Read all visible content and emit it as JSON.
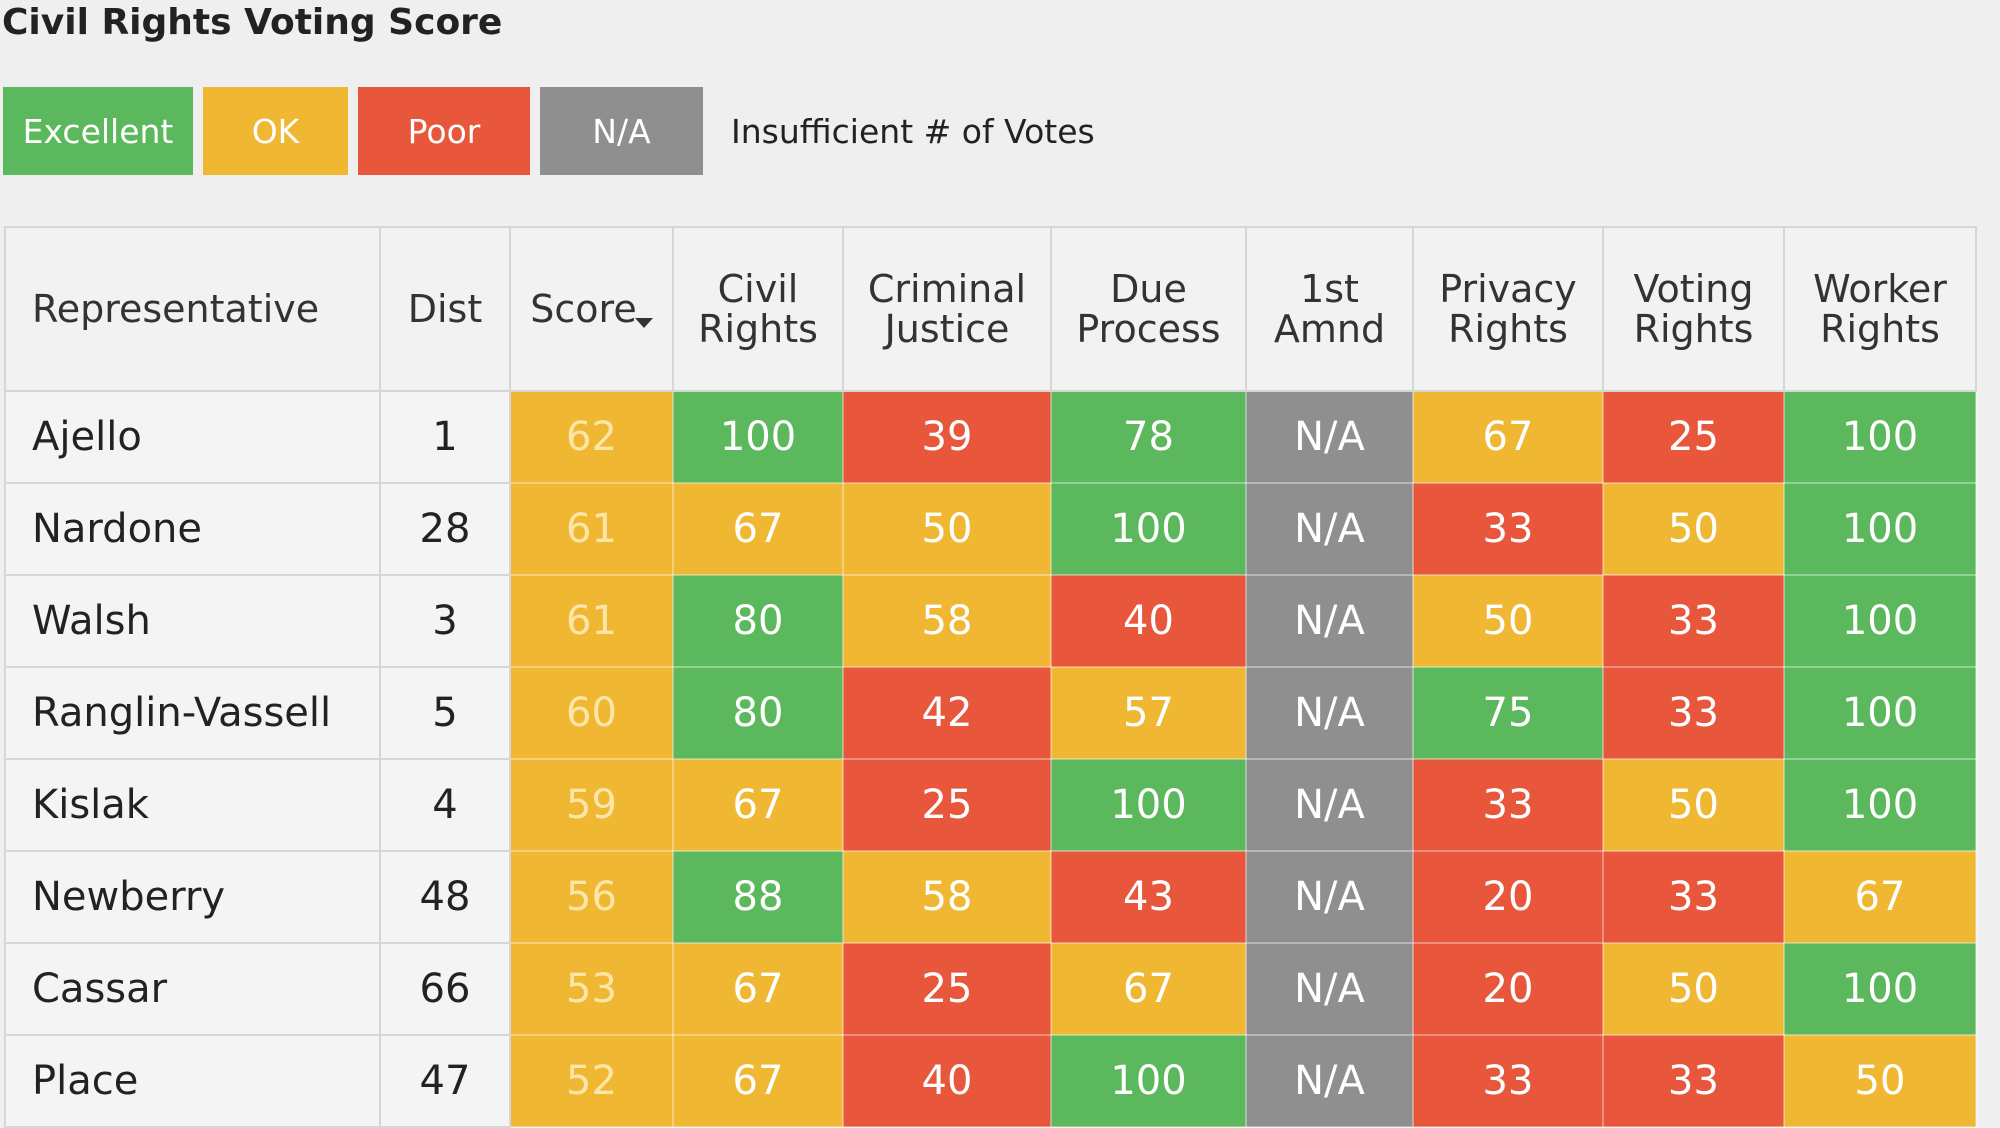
{
  "title": "Civil Rights Voting Score",
  "legend": [
    {
      "label": "Excellent",
      "color": "#5cb85c"
    },
    {
      "label": "OK",
      "color": "#f0b733"
    },
    {
      "label": "Poor",
      "color": "#e8573b"
    },
    {
      "label": "N/A",
      "color": "#8f8f8f"
    }
  ],
  "legend_note": "Insufficient # of Votes",
  "table": {
    "columns": [
      "Representative",
      "Dist",
      "Score",
      "Civil Rights",
      "Criminal Justice",
      "Due Process",
      "1st Amnd",
      "Privacy Rights",
      "Voting Rights",
      "Worker Rights"
    ],
    "rows": [
      [
        "Ajello",
        1,
        62,
        100,
        39,
        78,
        "N/A",
        67,
        25,
        100
      ],
      [
        "Nardone",
        28,
        61,
        67,
        50,
        100,
        "N/A",
        33,
        50,
        100
      ],
      [
        "Walsh",
        3,
        61,
        80,
        58,
        40,
        "N/A",
        50,
        33,
        100
      ],
      [
        "Ranglin-Vassell",
        5,
        60,
        80,
        42,
        57,
        "N/A",
        75,
        33,
        100
      ],
      [
        "Kislak",
        4,
        59,
        67,
        25,
        100,
        "N/A",
        33,
        50,
        100
      ],
      [
        "Newberry",
        48,
        56,
        88,
        58,
        43,
        "N/A",
        20,
        33,
        67
      ],
      [
        "Cassar",
        66,
        53,
        67,
        25,
        67,
        "N/A",
        20,
        50,
        100
      ],
      [
        "Place",
        47,
        52,
        67,
        40,
        100,
        "N/A",
        33,
        33,
        50
      ]
    ]
  }
}
